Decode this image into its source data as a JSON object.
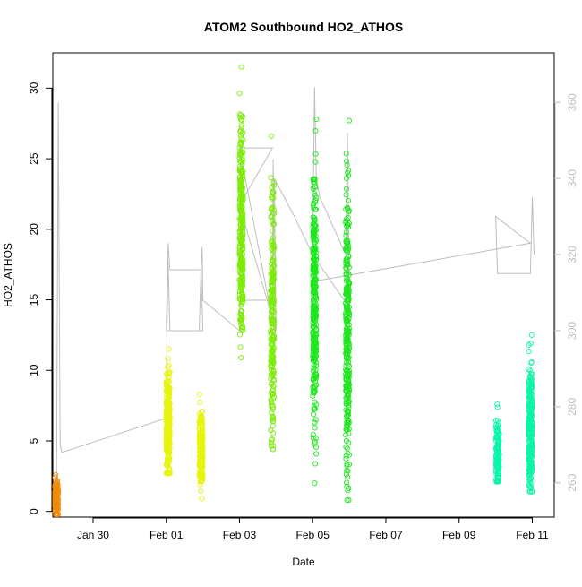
{
  "chart_data": {
    "type": "scatter",
    "title": "ATOM2 Southbound HO2_ATHOS",
    "xlabel": "Date",
    "ylabel": "HO2_ATHOS",
    "x_ticks": [
      "Jan 30",
      "Feb 01",
      "Feb 03",
      "Feb 05",
      "Feb 07",
      "Feb 09",
      "Feb 11"
    ],
    "x_tick_values": [
      30,
      32,
      34,
      36,
      38,
      40,
      42
    ],
    "xlim": [
      28.9,
      42.6
    ],
    "ylim": [
      -0.4,
      32.5
    ],
    "y_ticks": [
      0,
      5,
      10,
      15,
      20,
      25,
      30
    ],
    "y2lim": [
      251,
      373
    ],
    "y2_ticks": [
      260,
      280,
      300,
      320,
      340,
      360
    ],
    "y2_color": "#bebebe",
    "grid": false,
    "legend": "none",
    "series": [
      {
        "color": "#f08c0a",
        "segments": [
          {
            "x": 29.0,
            "y_min": -0.2,
            "y_max": 2.6,
            "y_mean": 0.9,
            "n": 180
          }
        ]
      },
      {
        "color": "#e6f50a",
        "segments": [
          {
            "x": 32.05,
            "y_min": 2.7,
            "y_max": 11.5,
            "y_mean": 6.2,
            "n": 260
          },
          {
            "x": 32.95,
            "y_min": 0.9,
            "y_max": 8.3,
            "y_mean": 4.5,
            "n": 220
          }
        ]
      },
      {
        "color": "#7deb0a",
        "segments": [
          {
            "x": 34.05,
            "y_min": 10.9,
            "y_max": 31.5,
            "y_mean": 20.0,
            "n": 300
          },
          {
            "x": 34.9,
            "y_min": 4.4,
            "y_max": 26.6,
            "y_mean": 14.0,
            "n": 230
          }
        ]
      },
      {
        "color": "#1ee61e",
        "segments": [
          {
            "x": 36.05,
            "y_min": 2.0,
            "y_max": 27.8,
            "y_mean": 15.0,
            "n": 330
          },
          {
            "x": 36.95,
            "y_min": 0.8,
            "y_max": 27.7,
            "y_mean": 13.0,
            "n": 320
          }
        ]
      },
      {
        "color": "#0af5aa",
        "segments": [
          {
            "x": 41.05,
            "y_min": 2.1,
            "y_max": 7.6,
            "y_mean": 3.8,
            "n": 120
          },
          {
            "x": 41.95,
            "y_min": 1.4,
            "y_max": 12.5,
            "y_mean": 6.0,
            "n": 280
          }
        ]
      }
    ],
    "secondary_line": {
      "color": "#bebebe",
      "axis": "right",
      "points": [
        [
          29.0,
          255
        ],
        [
          29.05,
          360
        ],
        [
          29.1,
          270
        ],
        [
          29.15,
          268
        ],
        [
          32.0,
          277
        ],
        [
          32.02,
          300
        ],
        [
          32.05,
          318
        ],
        [
          32.1,
          300
        ],
        [
          32.2,
          300
        ],
        [
          32.9,
          300
        ],
        [
          32.95,
          316
        ],
        [
          33.0,
          300
        ],
        [
          32.0,
          300
        ],
        [
          32.05,
          323
        ],
        [
          32.1,
          316
        ],
        [
          32.95,
          316
        ],
        [
          32.98,
          322
        ],
        [
          33.0,
          308
        ],
        [
          34.0,
          300
        ],
        [
          34.05,
          340
        ],
        [
          34.1,
          308
        ],
        [
          34.5,
          308
        ],
        [
          34.9,
          308
        ],
        [
          34.92,
          345
        ],
        [
          34.95,
          300
        ],
        [
          34.0,
          348
        ],
        [
          34.5,
          348
        ],
        [
          34.9,
          348
        ],
        [
          34.0,
          333
        ],
        [
          35.0,
          300
        ],
        [
          34.95,
          340
        ],
        [
          35.5,
          330
        ],
        [
          36.0,
          320
        ],
        [
          36.05,
          364
        ],
        [
          36.1,
          340
        ],
        [
          36.2,
          335
        ],
        [
          36.9,
          320
        ],
        [
          36.95,
          352
        ],
        [
          37.0,
          306
        ],
        [
          36.0,
          320
        ],
        [
          36.05,
          313
        ],
        [
          41.95,
          323
        ],
        [
          41.0,
          330
        ],
        [
          41.05,
          315
        ],
        [
          41.5,
          315
        ],
        [
          41.95,
          315
        ],
        [
          42.0,
          335
        ],
        [
          42.05,
          320
        ]
      ]
    }
  }
}
